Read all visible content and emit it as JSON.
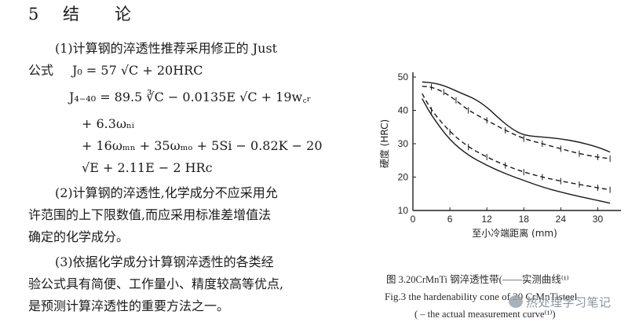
{
  "section": {
    "number": "5",
    "title": "结　　论"
  },
  "paragraphs": {
    "p1_line1": "(1)计算钢的淬透性推荐采用修正的 Just",
    "p1_line2_label": "公式",
    "formula_j0": "J₀ = 57 √C + 20HRC",
    "formula_j440_l1": "J₄₋₄₀ = 89.5 ∛C − 0.0135E √C + 19w꜀ᵣ",
    "formula_j440_l2": "+ 6.3ωₙᵢ",
    "formula_j440_l3": "+ 16ωₘₙ + 35ωₘₒ + 5Si − 0.82K − 20",
    "formula_j440_l4": "√E + 2.11E − 2 HRc",
    "p2_line1": "(2)计算钢的淬透性,化学成分不应采用允",
    "p2_line2": "许范围的上下限数值,而应采用标准差增值法",
    "p2_line3": "确定的化学成分。",
    "p3_line1": "(3)依据化学成分计算钢淬透性的各类经",
    "p3_line2": "验公式具有简便、工作量小、精度较高等优点,",
    "p3_line3": "是预测计算淬透性的重要方法之一。"
  },
  "figure": {
    "caption_cn": "图 3.20CrMnTi 钢淬透性带(——实测曲线⁽¹⁾",
    "caption_en_1": "Fig.3   the hardenability cone of 20 CrMnTisteel",
    "caption_en_2": "( – the actual measurement curve⁽¹⁾)"
  },
  "chart_data": {
    "type": "line",
    "xlabel": "至小冷端距离 (mm)",
    "ylabel": "硬度 (HRC)",
    "xlim": [
      0,
      33
    ],
    "ylim": [
      10,
      50
    ],
    "xticks": [
      0,
      6,
      12,
      18,
      24,
      30
    ],
    "yticks": [
      10,
      20,
      30,
      40,
      50
    ],
    "series": [
      {
        "style": "solid-upper",
        "x": [
          1.5,
          3,
          5,
          8,
          10,
          12,
          14,
          16,
          18,
          21,
          24,
          27,
          30,
          32
        ],
        "y": [
          48.5,
          48.3,
          47.5,
          45,
          43.5,
          41,
          37.5,
          34.5,
          32.5,
          32,
          31.5,
          30.5,
          29,
          27.5
        ]
      },
      {
        "style": "dashed-upper",
        "x": [
          1.5,
          3,
          5,
          7,
          9,
          12,
          15,
          18,
          21,
          24,
          27,
          30,
          32
        ],
        "y": [
          47.2,
          47,
          45.5,
          43,
          40,
          37,
          34,
          31.5,
          30,
          28.5,
          27,
          26,
          25.5
        ]
      },
      {
        "style": "dashed-lower",
        "x": [
          1.5,
          3,
          6,
          9,
          12,
          15,
          18,
          21,
          24,
          27,
          30,
          32
        ],
        "y": [
          45,
          40,
          33.5,
          29,
          26,
          23.5,
          21.5,
          20,
          18.8,
          17.8,
          16.8,
          16.2
        ]
      },
      {
        "style": "solid-lower",
        "x": [
          1.5,
          3,
          6,
          9,
          12,
          15,
          18,
          21,
          24,
          27,
          30,
          32
        ],
        "y": [
          43.5,
          38.5,
          31,
          26.5,
          23.5,
          21,
          19,
          17,
          15.5,
          14.2,
          13,
          12.2
        ]
      }
    ]
  },
  "watermark": {
    "text": "热处理学习笔记"
  }
}
